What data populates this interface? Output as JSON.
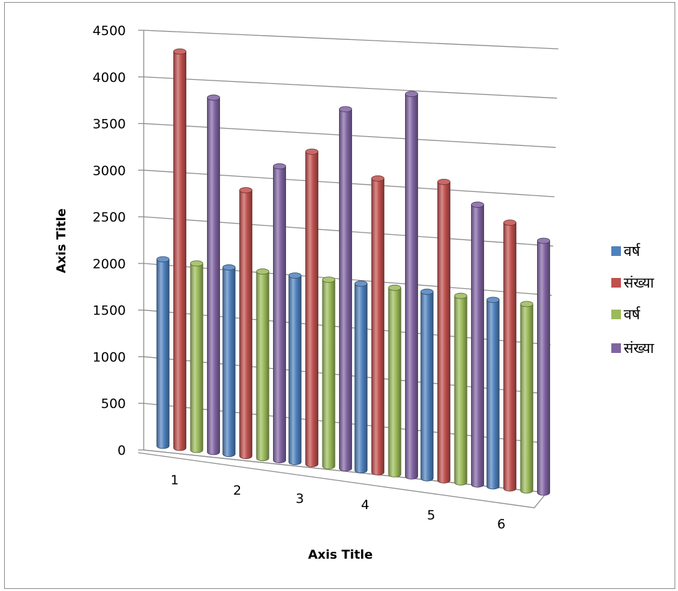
{
  "chart_data": {
    "type": "bar",
    "title": "",
    "xlabel": "Axis Title",
    "ylabel": "Axis Title",
    "ylim": [
      0,
      4500
    ],
    "y_ticks": [
      "0",
      "500",
      "1000",
      "1500",
      "2000",
      "2500",
      "3000",
      "3500",
      "4000",
      "4500"
    ],
    "categories": [
      "1",
      "2",
      "3",
      "4",
      "5",
      "6"
    ],
    "grid": true,
    "legend_position": "right",
    "series": [
      {
        "name": "वर्ष",
        "color": "#4f81bd",
        "values": [
          2000,
          2000,
          2000,
          2000,
          2000,
          2000
        ]
      },
      {
        "name": "संख्या",
        "color": "#c0504d",
        "values": [
          4250,
          2850,
          3350,
          3150,
          3200,
          2850
        ]
      },
      {
        "name": "वर्ष",
        "color": "#9bbb59",
        "values": [
          2000,
          2000,
          2000,
          2000,
          2000,
          2000
        ]
      },
      {
        "name": "संख्या",
        "color": "#8064a2",
        "values": [
          3800,
          3150,
          3850,
          4100,
          3000,
          2700
        ]
      }
    ]
  }
}
